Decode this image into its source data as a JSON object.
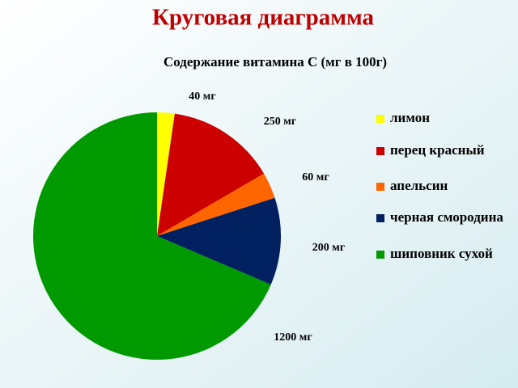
{
  "title": "Круговая диаграмма",
  "chart_data": {
    "type": "pie",
    "title": "Содержание витамина С (мг в 100г)",
    "categories": [
      "лимон",
      "перец красный",
      "апельсин",
      "черная смородина",
      "шиповник сухой"
    ],
    "values": [
      40,
      250,
      60,
      200,
      1200
    ],
    "value_labels": [
      "40 мг",
      "250 мг",
      "60 мг",
      "200 мг",
      "1200 мг"
    ],
    "colors": [
      "#ffff00",
      "#cc0000",
      "#ff6600",
      "#002060",
      "#009900"
    ],
    "legend": "right"
  }
}
